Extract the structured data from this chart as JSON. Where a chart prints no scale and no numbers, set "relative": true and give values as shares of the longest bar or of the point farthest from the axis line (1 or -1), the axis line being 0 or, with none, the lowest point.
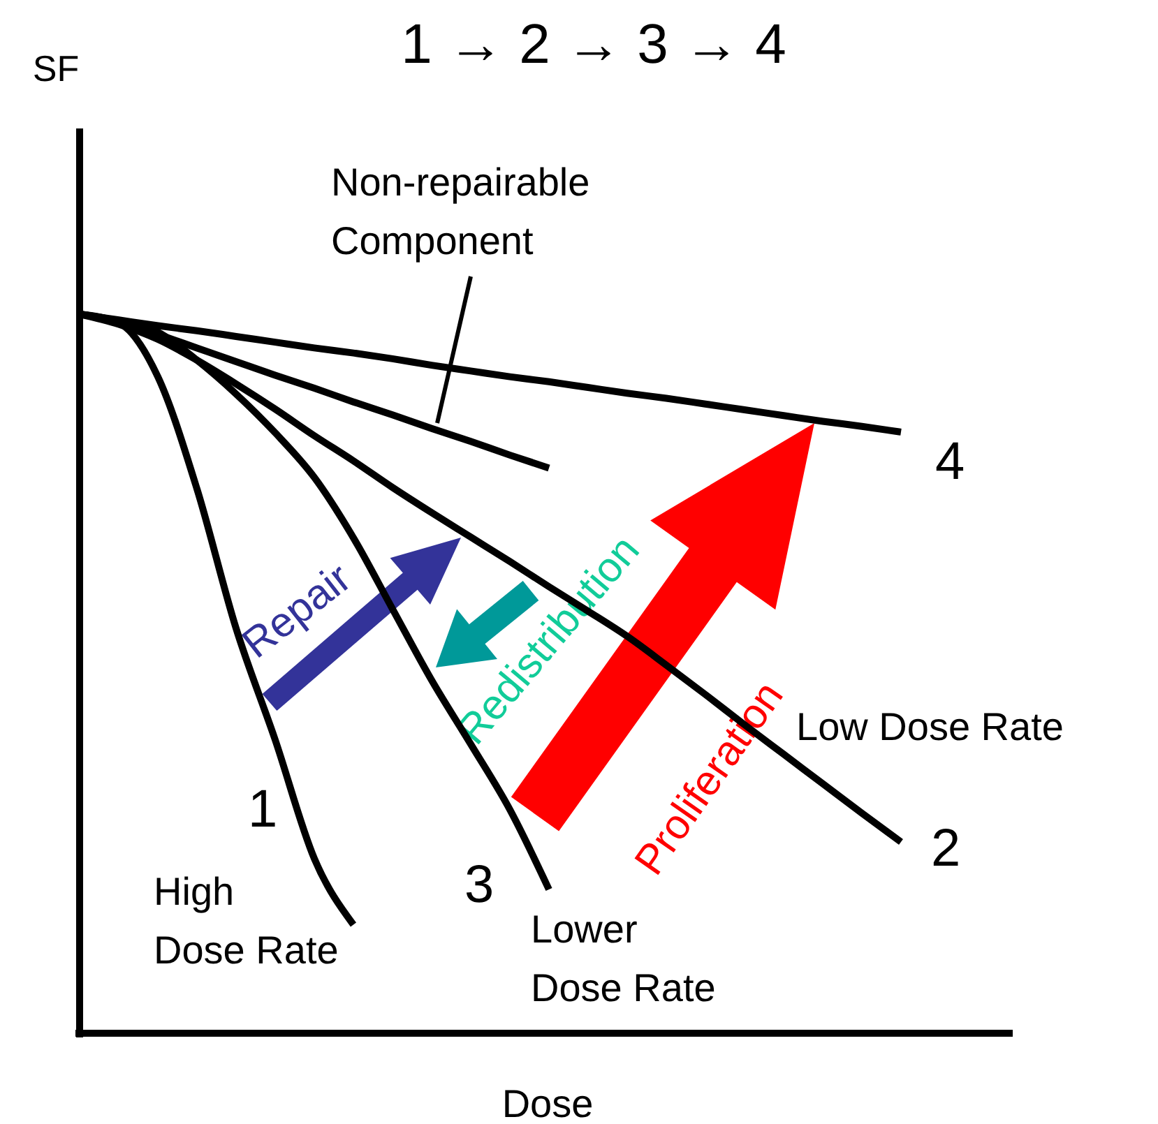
{
  "chart_data": {
    "type": "line",
    "title": "1 → 2 → 3 → 4",
    "xlabel": "Dose",
    "relative": true,
    "marker": "none",
    "line_style": "solid",
    "categories": [
      null,
      null,
      null,
      null,
      null,
      null,
      null,
      null,
      null,
      null,
      null,
      null,
      null,
      null,
      null,
      null,
      null,
      null,
      null,
      null,
      null,
      null,
      null,
      null
    ],
    "series": [
      {
        "color": "#000000",
        "values": [
          1,
          0.992,
          0.984,
          0.977,
          0.969,
          0.961,
          0.953,
          0.946,
          0.938,
          0.929,
          0.921,
          0.913,
          0.906,
          0.898,
          0.89,
          0.883,
          0.875,
          0.867,
          0.859,
          0.851,
          0.844,
          0.836,
          null,
          null
        ]
      },
      {
        "name": "Non-repairable Component",
        "color": "#000000",
        "values": [
          1,
          0.99,
          0.972,
          0.953,
          0.934,
          0.915,
          0.897,
          0.878,
          0.86,
          0.841,
          0.823,
          0.804,
          0.786,
          null,
          null,
          null,
          null,
          null,
          null,
          null,
          null,
          null,
          null,
          null
        ]
      },
      {
        "name": "Low Dose Rate",
        "color": "#000000",
        "values": [
          1,
          0.986,
          0.965,
          0.936,
          0.903,
          0.868,
          0.831,
          0.796,
          0.759,
          0.724,
          0.69,
          0.656,
          0.621,
          0.587,
          0.552,
          0.512,
          0.471,
          0.429,
          0.388,
          0.347,
          0.306,
          0.266,
          null,
          null
        ]
      },
      {
        "name": "Lower Dose Rate",
        "color": "#000000",
        "values": [
          1,
          0.99,
          0.975,
          0.936,
          0.889,
          0.835,
          0.773,
          0.689,
          0.59,
          0.491,
          0.402,
          0.311,
          0.2,
          null,
          null,
          null,
          null,
          null,
          null,
          null,
          null,
          null,
          null,
          null
        ]
      },
      {
        "name": "High Dose Rate",
        "color": "#000000",
        "values": [
          1,
          0.988,
          0.913,
          0.757,
          0.563,
          0.408,
          0.243,
          0.151,
          null,
          null,
          null,
          null,
          null,
          null,
          null,
          null,
          null,
          null,
          null,
          null,
          null,
          null,
          null,
          null
        ]
      }
    ],
    "annotations": [
      "Repair",
      "Redistribution",
      "Proliferation",
      "1",
      "2",
      "3",
      "4",
      "SF"
    ]
  }
}
